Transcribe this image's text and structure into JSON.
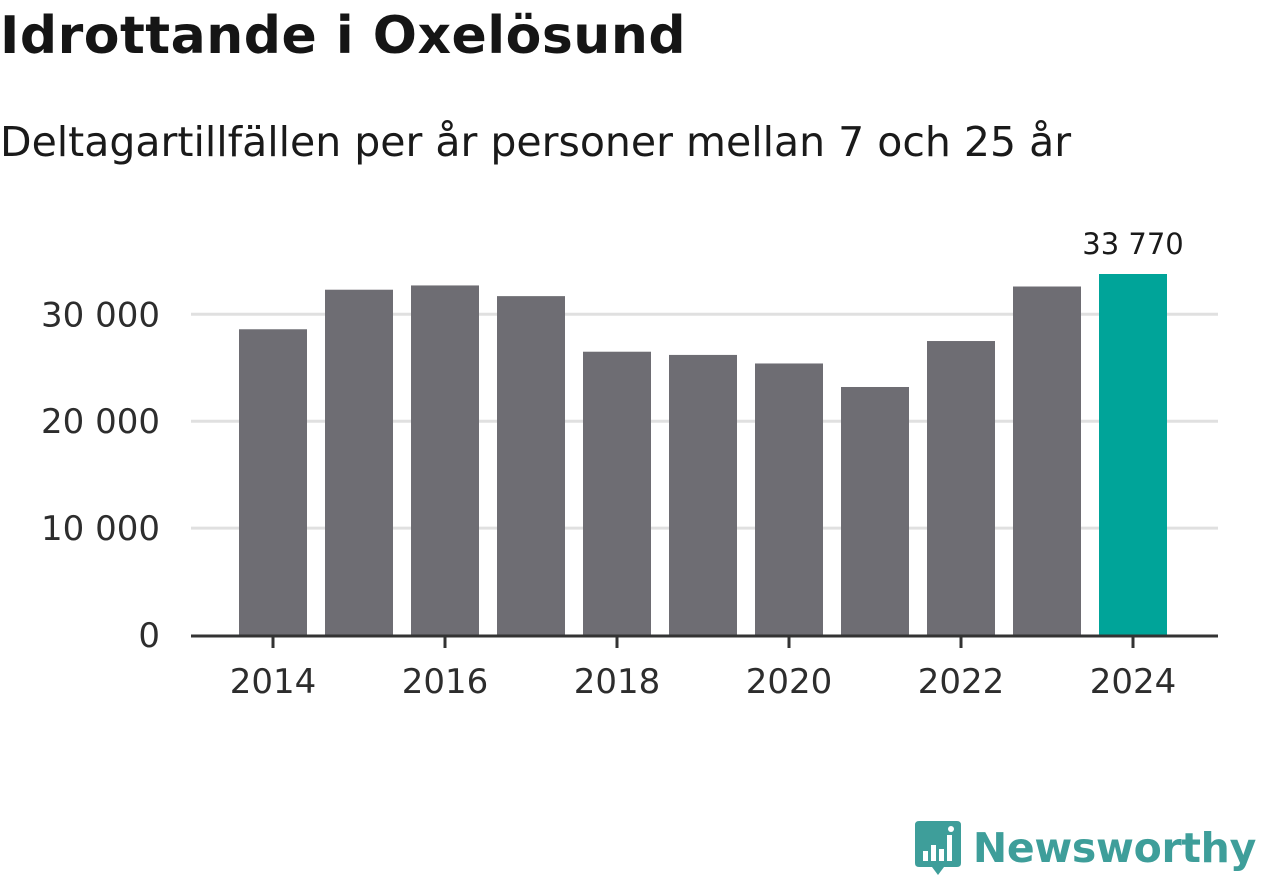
{
  "title": "Idrottande i Oxelösund",
  "subtitle": "Deltagartillfällen per år personer mellan 7 och 25 år",
  "brand": {
    "name": "Newsworthy",
    "icon": "newsworthy-logo-icon"
  },
  "colors": {
    "bar": "#6e6d73",
    "highlight": "#00a499",
    "grid": "#e0e0e0",
    "axis": "#333333",
    "brand": "#3e9e9a"
  },
  "chart_data": {
    "type": "bar",
    "title": "Idrottande i Oxelösund",
    "subtitle": "Deltagartillfällen per år personer mellan 7 och 25 år",
    "xlabel": "",
    "ylabel": "",
    "categories": [
      "2014",
      "2015",
      "2016",
      "2017",
      "2018",
      "2019",
      "2020",
      "2021",
      "2022",
      "2023",
      "2024"
    ],
    "values": [
      28600,
      32300,
      32700,
      31700,
      26500,
      26200,
      25400,
      23200,
      27500,
      32600,
      33770
    ],
    "ylim": [
      0,
      33770
    ],
    "yticks": [
      0,
      10000,
      20000,
      30000
    ],
    "ytick_labels": [
      "0",
      "10 000",
      "20 000",
      "30 000"
    ],
    "xtick_labels": [
      "2014",
      "2016",
      "2018",
      "2020",
      "2022",
      "2024"
    ],
    "highlight_index": 10,
    "highlight_label": "33 770",
    "grid": true
  }
}
